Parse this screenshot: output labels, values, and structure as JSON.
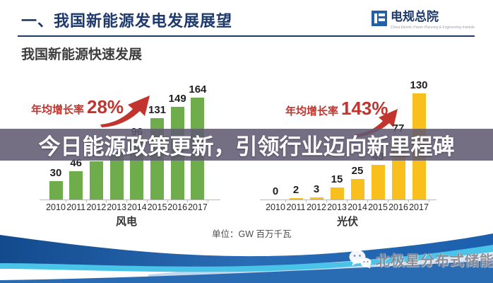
{
  "header": {
    "title": "一、我国新能源发电发展展望",
    "logo": {
      "name": "电规总院",
      "subtext": "China Electric Power Planning & Engineering Institute"
    }
  },
  "subtitle": "我国新能源快速发展",
  "banner": {
    "text": "今日能源政策更新，引领行业迈向新里程碑"
  },
  "unit_label": "单位：GW  百万千瓦",
  "watermark": {
    "icon": "wechat-icon",
    "text": "北极星分布式储能"
  },
  "colors": {
    "accent_navy": "#1e3a6c",
    "wind_bar": "#6fad4c",
    "pv_bar": "#f8bf1d",
    "growth_red": "#c2342e",
    "banner_bg": "rgba(97,91,114,0.88)",
    "swoosh_blue": "#1b5fae",
    "swoosh_cyan": "#49c3e8"
  },
  "chart_data": [
    {
      "type": "bar",
      "title": "风电",
      "categories": [
        "2010",
        "2011",
        "2012",
        "2013",
        "2014",
        "2015",
        "2016",
        "2017"
      ],
      "values": [
        30,
        46,
        61,
        76,
        96,
        131,
        149,
        164
      ],
      "growth_label": "年均增长率",
      "growth_value": "28%",
      "unit": "GW",
      "ylim": [
        0,
        180
      ],
      "grid": false,
      "legend": "none",
      "bar_color": "#6fad4c"
    },
    {
      "type": "bar",
      "title": "光伏",
      "categories": [
        "2010",
        "2011",
        "2012",
        "2013",
        "2014",
        "2015",
        "2016",
        "2017"
      ],
      "values": [
        0,
        2,
        3,
        15,
        25,
        43,
        77,
        130
      ],
      "growth_label": "年均增长率",
      "growth_value": "143%",
      "unit": "GW",
      "ylim": [
        0,
        140
      ],
      "grid": false,
      "legend": "none",
      "bar_color": "#f8bf1d"
    }
  ]
}
